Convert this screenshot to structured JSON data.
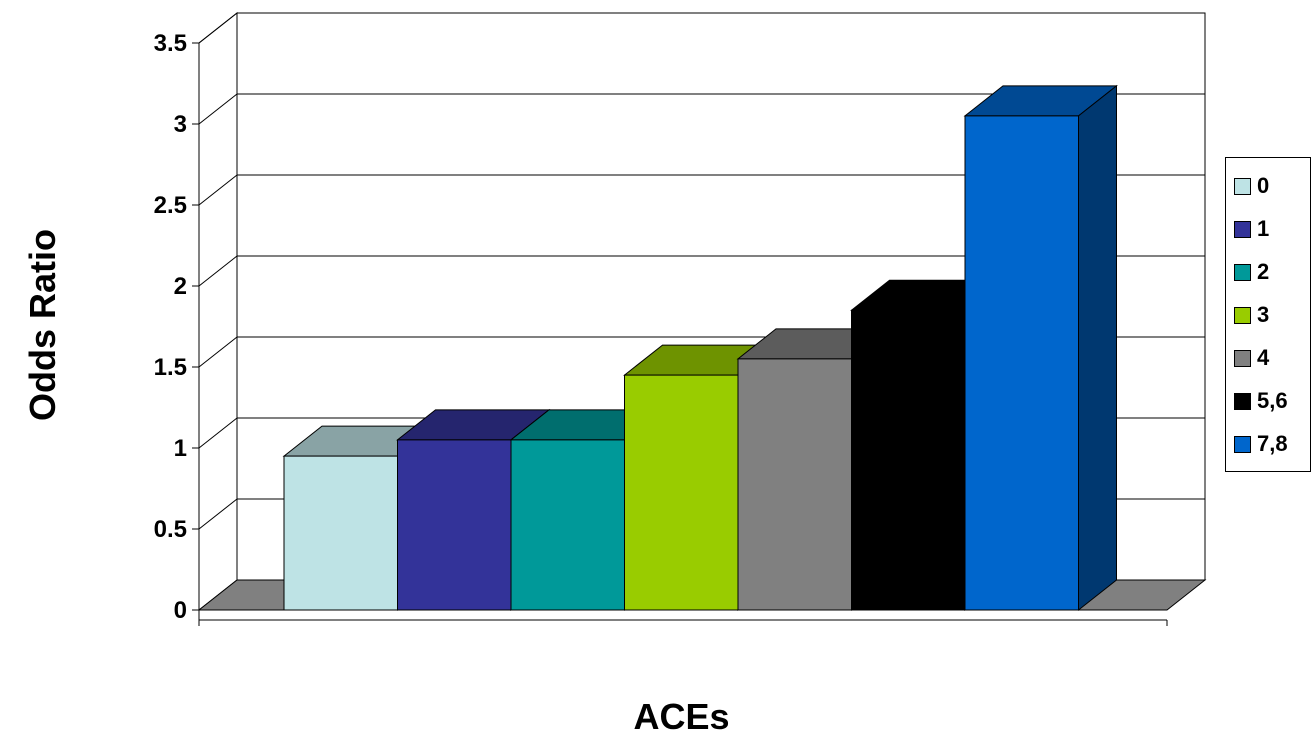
{
  "chart_data": {
    "type": "bar",
    "style": "3d-clustered-column",
    "xlabel": "ACEs",
    "ylabel": "Odds Ratio",
    "ylim": [
      0,
      3.5
    ],
    "yticks": [
      "0",
      "0.5",
      "1",
      "1.5",
      "2",
      "2.5",
      "3",
      "3.5"
    ],
    "grid": true,
    "legend_position": "right",
    "series": [
      {
        "name": "0",
        "value": 0.95,
        "color": "#bee3e5"
      },
      {
        "name": "1",
        "value": 1.05,
        "color": "#333399"
      },
      {
        "name": "2",
        "value": 1.05,
        "color": "#009999"
      },
      {
        "name": "3",
        "value": 1.45,
        "color": "#99cc00"
      },
      {
        "name": "4",
        "value": 1.55,
        "color": "#808080"
      },
      {
        "name": "5,6",
        "value": 1.85,
        "color": "#000000"
      },
      {
        "name": "7,8",
        "value": 3.05,
        "color": "#0066cc"
      }
    ]
  }
}
